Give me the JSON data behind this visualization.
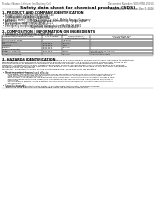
{
  "bg_color": "#ffffff",
  "header_left": "Product Name: Lithium Ion Battery Cell",
  "header_right": "Document Number: SDS-MEB-00010\nEstablished / Revision: Dec 7, 2016",
  "title": "Safety data sheet for chemical products (SDS)",
  "section1_title": "1. PRODUCT AND COMPANY IDENTIFICATION",
  "section1_lines": [
    " • Product name: Lithium Ion Battery Cell",
    " • Product code: Cylindrical-type cell",
    "      (UR18650J, UR18650L, UR18650A)",
    " • Company name:     Sanyo Electric Co., Ltd., Mobile Energy Company",
    " • Address:              2001, Kamionakano, Sumoto-City, Hyogo, Japan",
    " • Telephone number:  +81-799-26-4111",
    " • Fax number:  +81-799-26-4120",
    " • Emergency telephone number (Weekday): +81-799-26-3862",
    "                                     (Night and holiday): +81-799-26-4101"
  ],
  "section2_title": "2. COMPOSITION / INFORMATION ON INGREDIENTS",
  "section2_sub": " • Substance or preparation: Preparation",
  "section2_sub2": " • Information about the chemical nature of product:",
  "table_col_header": "Component/Chemical name",
  "table_headers": [
    "CAS number",
    "Concentration /\nConcentration range",
    "Classification and\nhazard labeling"
  ],
  "table_rows": [
    [
      "Lithium cobalt oxide\n(LiMn-Co(NiO2))",
      "-",
      "(30-60%)",
      "-"
    ],
    [
      "Iron",
      "7439-89-6",
      "10-20%",
      "-"
    ],
    [
      "Aluminum",
      "7429-90-5",
      "2-5%",
      "-"
    ],
    [
      "Graphite\n(Natural graphite)\n(Artificial graphite)",
      "7782-42-5\n7782-44-0",
      "10-25%",
      "-"
    ],
    [
      "Copper",
      "7440-50-8",
      "5-15%",
      "Sensitization of the skin\ngroup R43.2"
    ],
    [
      "Organic electrolyte",
      "-",
      "10-20%",
      "Inflammable liquid"
    ]
  ],
  "section3_title": "3. HAZARDS IDENTIFICATION",
  "section3_text": [
    "For the battery cell, chemical materials are stored in a hermetically sealed metal case, designed to withstand",
    "temperatures and pressures encountered during normal use. As a result, during normal use, there is no",
    "physical danger of ignition or explosion and there no danger of hazardous materials leakage.",
    "However, if exposed to a fire, added mechanical shocks, decomposed, short-circuit whose any misuse,",
    "the gas release vent can be operated. The battery cell case will be breached at the extreme, hazardous",
    "materials may be released.",
    "Moreover, if heated strongly by the surrounding fire, solid gas may be emitted."
  ],
  "section3_bullet1": " • Most important hazard and effects:",
  "section3_health": "     Human health effects:",
  "section3_health_lines": [
    "         Inhalation: The release of the electrolyte has an anaesthesia action and stimulates in respiratory tract.",
    "         Skin contact: The release of the electrolyte stimulates a skin. The electrolyte skin contact causes a",
    "         sore and stimulation on the skin.",
    "         Eye contact: The release of the electrolyte stimulates eyes. The electrolyte eye contact causes a sore",
    "         and stimulation on the eye. Especially, a substance that causes a strong inflammation of the eye is",
    "         contained.",
    "         Environmental effects: Since a battery cell remains in the environment, do not throw out it into the",
    "         environment."
  ],
  "section3_specific": " • Specific hazards:",
  "section3_specific_lines": [
    "     If the electrolyte contacts with water, it will generate detrimental hydrogen fluoride.",
    "     Since the used electrolyte is inflammable liquid, do not bring close to fire."
  ]
}
